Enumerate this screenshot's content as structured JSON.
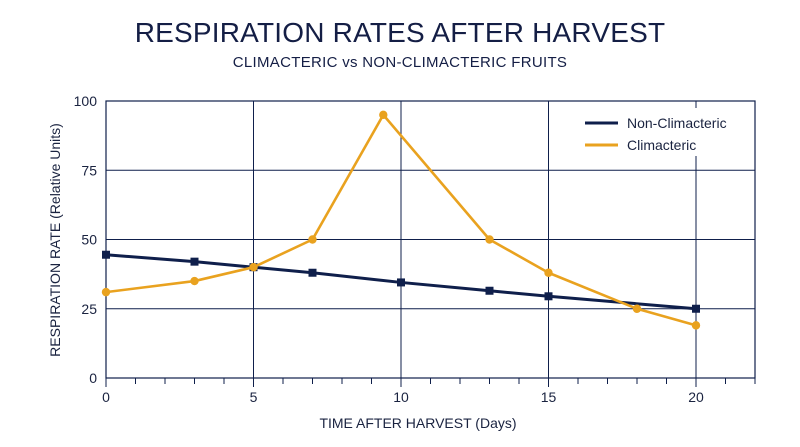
{
  "chart_data": {
    "type": "line",
    "title": "RESPIRATION RATES AFTER HARVEST",
    "subtitle": "CLIMACTERIC vs NON-CLIMACTERIC FRUITS",
    "xlabel": "TIME AFTER HARVEST (Days)",
    "ylabel": "RESPIRATION RATE (Relative Units)",
    "xlim": [
      0,
      22
    ],
    "ylim": [
      0,
      100
    ],
    "x_ticks": [
      0,
      5,
      10,
      15,
      20
    ],
    "y_ticks": [
      0,
      25,
      50,
      75,
      100
    ],
    "grid": true,
    "legend_position": "top-right",
    "series": [
      {
        "name": "Non-Climacteric",
        "color": "#0f1f4b",
        "marker": "square",
        "x": [
          0,
          3,
          5,
          7,
          10,
          13,
          15,
          20
        ],
        "values": [
          44.5,
          42,
          40,
          38,
          34.5,
          31.5,
          29.5,
          25
        ]
      },
      {
        "name": "Climacteric",
        "color": "#e9a21f",
        "marker": "circle",
        "x": [
          0,
          3,
          5,
          7,
          9.4,
          13,
          15,
          18,
          20
        ],
        "values": [
          31,
          35,
          40,
          50,
          95,
          50,
          38,
          25,
          19
        ]
      }
    ]
  }
}
